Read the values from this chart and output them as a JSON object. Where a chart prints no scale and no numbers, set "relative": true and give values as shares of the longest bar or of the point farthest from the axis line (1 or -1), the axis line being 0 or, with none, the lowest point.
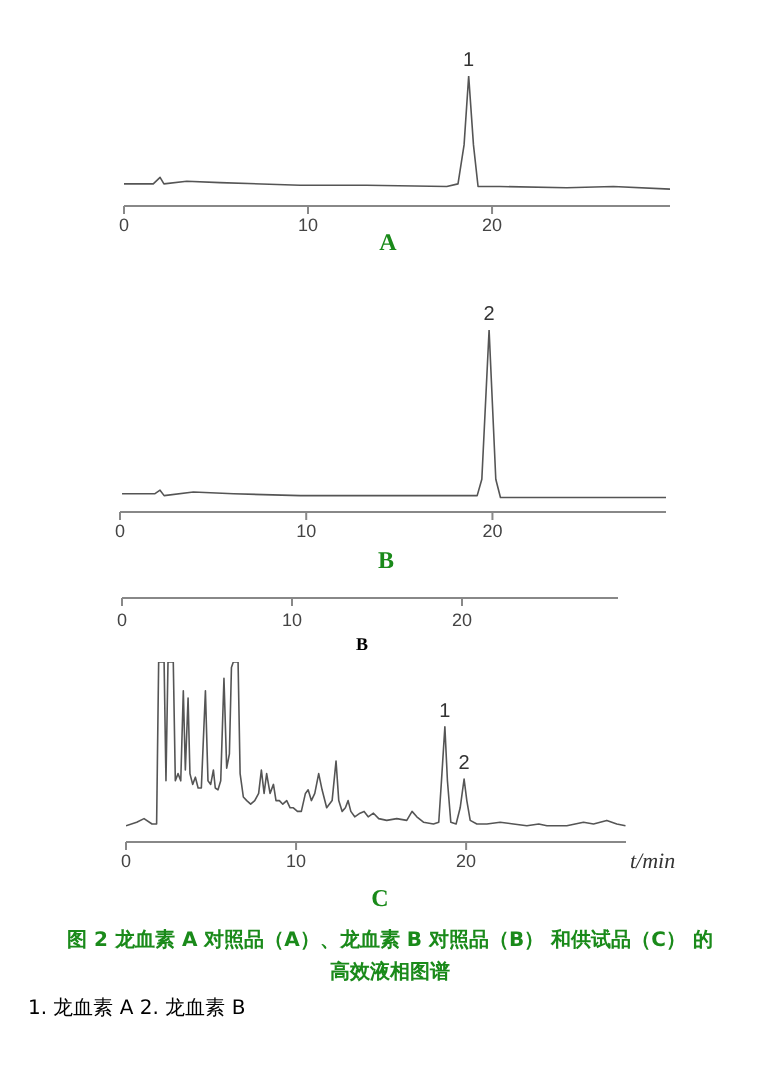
{
  "chart_data": [
    {
      "type": "line",
      "title": "A",
      "relative": true,
      "marker": "none",
      "xlim": [
        0,
        29.67
      ],
      "xticks": [
        0,
        10,
        20
      ],
      "series": [
        {
          "color": "#555555",
          "x": [
            0,
            1.59,
            1.96,
            2.17,
            3.41,
            5.22,
            9.57,
            13.19,
            17.54,
            18.15,
            18.48,
            18.73,
            18.99,
            19.24,
            20.43,
            24.06,
            26.59,
            29.67
          ],
          "values": [
            0.17,
            0.17,
            0.22,
            0.17,
            0.19,
            0.18,
            0.16,
            0.16,
            0.15,
            0.17,
            0.47,
            1,
            0.47,
            0.15,
            0.15,
            0.14,
            0.15,
            0.13
          ]
        }
      ],
      "annotations": [
        {
          "text": "1",
          "x": 18.73,
          "y": 1
        }
      ]
    },
    {
      "type": "line",
      "title": "B",
      "relative": true,
      "marker": "none",
      "xlim": [
        0,
        29.32
      ],
      "xticks": [
        0,
        10,
        20
      ],
      "series": [
        {
          "color": "#555555",
          "x": [
            0.11,
            1.86,
            2.15,
            2.37,
            3.94,
            6.09,
            9.68,
            15.05,
            19.18,
            19.43,
            19.82,
            20.18,
            20.43,
            24.01,
            29.32
          ],
          "values": [
            0.1,
            0.1,
            0.12,
            0.09,
            0.11,
            0.1,
            0.09,
            0.09,
            0.09,
            0.18,
            1,
            0.18,
            0.08,
            0.08,
            0.08
          ]
        }
      ],
      "annotations": [
        {
          "text": "2",
          "x": 19.82,
          "y": 1
        }
      ]
    },
    {
      "type": "other",
      "title": "B",
      "annotations": [
        "0",
        "10",
        "20"
      ]
    },
    {
      "type": "line",
      "title": "C",
      "xlabel": "t/min",
      "relative": true,
      "marker": "none",
      "xlim": [
        0,
        29.4
      ],
      "xticks": [
        0,
        10,
        20
      ],
      "series": [
        {
          "color": "#555555",
          "x": [
            0,
            0.63,
            1.06,
            1.53,
            1.8,
            1.92,
            2.24,
            2.35,
            2.47,
            2.78,
            2.9,
            3.06,
            3.22,
            3.37,
            3.49,
            3.65,
            3.76,
            3.92,
            4.08,
            4.24,
            4.43,
            4.67,
            4.82,
            4.98,
            5.14,
            5.25,
            5.41,
            5.57,
            5.76,
            5.92,
            6.08,
            6.2,
            6.31,
            6.59,
            6.71,
            6.9,
            7.1,
            7.33,
            7.57,
            7.8,
            7.96,
            8.12,
            8.27,
            8.47,
            8.67,
            8.82,
            9.02,
            9.22,
            9.45,
            9.65,
            9.84,
            10.08,
            10.31,
            10.55,
            10.71,
            10.9,
            11.1,
            11.33,
            11.53,
            11.8,
            12.12,
            12.35,
            12.51,
            12.71,
            12.9,
            13.06,
            13.22,
            13.45,
            13.76,
            14,
            14.24,
            14.55,
            14.86,
            15.33,
            15.92,
            16.51,
            16.82,
            17.1,
            17.49,
            18.08,
            18.39,
            18.55,
            18.75,
            18.9,
            19.1,
            19.41,
            19.65,
            19.88,
            20.04,
            20.24,
            20.63,
            21.22,
            22,
            22.78,
            23.57,
            24.27,
            24.75,
            25.92,
            26.9,
            27.49,
            28.27,
            28.86,
            29.37
          ],
          "values": [
            0.09,
            0.11,
            0.13,
            0.1,
            0.1,
            1,
            1,
            0.34,
            1,
            1,
            0.34,
            0.38,
            0.34,
            0.84,
            0.4,
            0.8,
            0.38,
            0.32,
            0.36,
            0.3,
            0.3,
            0.84,
            0.34,
            0.32,
            0.4,
            0.3,
            0.29,
            0.34,
            0.91,
            0.41,
            0.49,
            0.97,
            1,
            1,
            0.38,
            0.25,
            0.23,
            0.21,
            0.23,
            0.27,
            0.4,
            0.27,
            0.38,
            0.27,
            0.32,
            0.23,
            0.23,
            0.21,
            0.23,
            0.19,
            0.19,
            0.17,
            0.17,
            0.27,
            0.29,
            0.23,
            0.27,
            0.38,
            0.29,
            0.19,
            0.23,
            0.45,
            0.23,
            0.17,
            0.19,
            0.23,
            0.17,
            0.14,
            0.16,
            0.17,
            0.14,
            0.16,
            0.13,
            0.12,
            0.13,
            0.12,
            0.17,
            0.14,
            0.11,
            0.1,
            0.11,
            0.34,
            0.64,
            0.34,
            0.11,
            0.1,
            0.19,
            0.35,
            0.23,
            0.12,
            0.1,
            0.1,
            0.11,
            0.1,
            0.09,
            0.1,
            0.09,
            0.09,
            0.11,
            0.1,
            0.12,
            0.1,
            0.09
          ]
        }
      ],
      "annotations": [
        {
          "text": "1",
          "x": 18.75,
          "y": 0.64
        },
        {
          "text": "2",
          "x": 19.88,
          "y": 0.35
        },
        "图 2  龙血素 A 对照品（A）、龙血素 B 对照品（B） 和供试品（C） 的高效液相图谱",
        "1. 龙血素 A 2. 龙血素 B"
      ]
    }
  ]
}
